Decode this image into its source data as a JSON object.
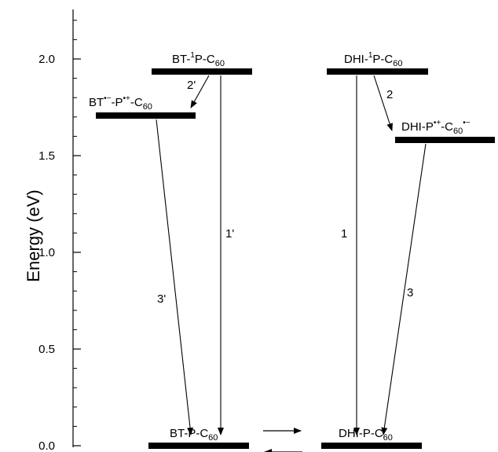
{
  "diagram": {
    "y_axis": {
      "label": "Energy (eV)",
      "range": [
        0.0,
        2.3
      ],
      "ticks": [
        "0.0",
        "0.5",
        "1.0",
        "1.5",
        "2.0"
      ]
    },
    "levels": [
      {
        "id": "bt_1p_c60",
        "energy": 1.94,
        "label": {
          "base": "BT-",
          "sup1": "1",
          "mid": "P-C",
          "sub": "60"
        }
      },
      {
        "id": "bt_cs",
        "energy": 1.72,
        "label": {
          "base": "BT",
          "sup1": "•−",
          "mid": "-P",
          "sup2": "•+",
          "tail": "-C",
          "sub": "60"
        }
      },
      {
        "id": "dhi_1p_c60",
        "energy": 1.94,
        "label": {
          "base": "DHI-",
          "sup1": "1",
          "mid": "P-C",
          "sub": "60"
        }
      },
      {
        "id": "dhi_cs",
        "energy": 1.59,
        "label": {
          "base": "DHI-P",
          "sup1": "•+",
          "mid": "-C",
          "sub": "60",
          "sup2": "•−"
        }
      },
      {
        "id": "bt_p_c60",
        "energy": 0.0,
        "label": {
          "base": "BT-P-C",
          "sub": "60"
        }
      },
      {
        "id": "dhi_p_c60",
        "energy": 0.0,
        "label": {
          "base": "DHI-P-C",
          "sub": "60"
        }
      }
    ],
    "transitions": [
      {
        "label": "2'"
      },
      {
        "label": "1'"
      },
      {
        "label": "3'"
      },
      {
        "label": "1"
      },
      {
        "label": "2"
      },
      {
        "label": "3"
      }
    ]
  }
}
